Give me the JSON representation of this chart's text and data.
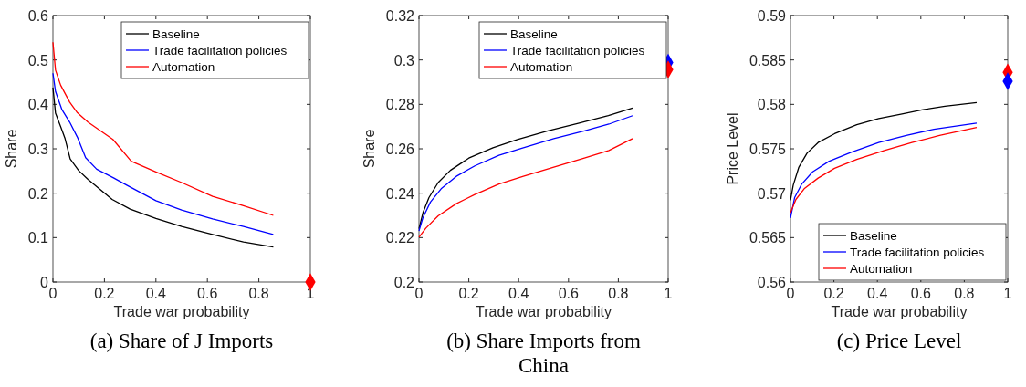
{
  "chart_data": [
    {
      "type": "line",
      "title": "(a) Share of J Imports",
      "xlabel": "Trade war probability",
      "ylabel": "Share",
      "xlim": [
        0,
        1
      ],
      "xticks": [
        0,
        0.2,
        0.4,
        0.6,
        0.8,
        1
      ],
      "ylim": [
        0,
        0.6
      ],
      "yticks": [
        0,
        0.1,
        0.2,
        0.3,
        0.4,
        0.5,
        0.6
      ],
      "legend": "top right",
      "series": [
        {
          "name": "Baseline",
          "color": "#000000",
          "x": [
            0,
            0.01,
            0.03,
            0.047,
            0.067,
            0.1,
            0.136,
            0.23,
            0.3,
            0.4,
            0.5,
            0.62,
            0.74,
            0.856
          ],
          "values": [
            0.438,
            0.38,
            0.35,
            0.323,
            0.277,
            0.251,
            0.231,
            0.186,
            0.164,
            0.143,
            0.125,
            0.107,
            0.09,
            0.079
          ]
        },
        {
          "name": "Trade facilitation policies",
          "color": "#0000ff",
          "x": [
            0,
            0.01,
            0.035,
            0.065,
            0.095,
            0.127,
            0.17,
            0.237,
            0.29,
            0.4,
            0.5,
            0.62,
            0.74,
            0.856
          ],
          "values": [
            0.47,
            0.429,
            0.388,
            0.36,
            0.326,
            0.28,
            0.254,
            0.234,
            0.217,
            0.183,
            0.162,
            0.142,
            0.125,
            0.107
          ]
        },
        {
          "name": "Automation",
          "color": "#ff0000",
          "x": [
            0,
            0.01,
            0.03,
            0.065,
            0.095,
            0.136,
            0.233,
            0.304,
            0.4,
            0.5,
            0.62,
            0.74,
            0.856
          ],
          "values": [
            0.54,
            0.477,
            0.443,
            0.405,
            0.381,
            0.36,
            0.321,
            0.272,
            0.248,
            0.224,
            0.193,
            0.172,
            0.15
          ]
        },
        {
          "type": "scatter",
          "marker": "diamond",
          "color": "#ff0000",
          "x": [
            1
          ],
          "values": [
            0
          ]
        }
      ]
    },
    {
      "type": "line",
      "title": "(b) Share Imports from China",
      "xlabel": "Trade war probability",
      "ylabel": "Share",
      "xlim": [
        0,
        1
      ],
      "xticks": [
        0,
        0.2,
        0.4,
        0.6,
        0.8,
        1
      ],
      "ylim": [
        0.2,
        0.32
      ],
      "yticks": [
        0.2,
        0.22,
        0.24,
        0.26,
        0.28,
        0.3,
        0.32
      ],
      "legend": "top right",
      "series": [
        {
          "name": "Baseline",
          "color": "#000000",
          "x": [
            0,
            0.016,
            0.04,
            0.077,
            0.126,
            0.2,
            0.297,
            0.395,
            0.517,
            0.639,
            0.76,
            0.857
          ],
          "values": [
            0.224,
            0.2312,
            0.238,
            0.2448,
            0.2503,
            0.2558,
            0.2605,
            0.2642,
            0.2681,
            0.2715,
            0.2749,
            0.2783
          ]
        },
        {
          "name": "Trade facilitation policies",
          "color": "#0000ff",
          "x": [
            0,
            0.016,
            0.046,
            0.089,
            0.15,
            0.224,
            0.321,
            0.419,
            0.541,
            0.664,
            0.762,
            0.857
          ],
          "values": [
            0.223,
            0.229,
            0.236,
            0.242,
            0.2476,
            0.2523,
            0.2571,
            0.2605,
            0.2646,
            0.2681,
            0.2711,
            0.2749
          ]
        },
        {
          "name": "Automation",
          "color": "#ff0000",
          "x": [
            0,
            0.028,
            0.077,
            0.15,
            0.224,
            0.321,
            0.419,
            0.541,
            0.664,
            0.762,
            0.857
          ],
          "values": [
            0.2202,
            0.2243,
            0.2298,
            0.2353,
            0.2394,
            0.2441,
            0.2476,
            0.2517,
            0.2558,
            0.2592,
            0.2646
          ]
        },
        {
          "type": "scatter",
          "marker": "diamond",
          "color": "#0000ff",
          "x": [
            1
          ],
          "values": [
            0.2988
          ]
        },
        {
          "type": "scatter",
          "marker": "diamond",
          "color": "#ff0000",
          "x": [
            1
          ],
          "values": [
            0.2957
          ]
        }
      ]
    },
    {
      "type": "line",
      "title": "(c) Price Level",
      "xlabel": "Trade war probability",
      "ylabel": "Price Level",
      "xlim": [
        0,
        1
      ],
      "xticks": [
        0,
        0.2,
        0.4,
        0.6,
        0.8,
        1
      ],
      "ylim": [
        0.56,
        0.59
      ],
      "yticks": [
        0.56,
        0.565,
        0.57,
        0.575,
        0.58,
        0.585,
        0.59
      ],
      "legend": "bottom right",
      "series": [
        {
          "name": "Baseline",
          "color": "#000000",
          "x": [
            0,
            0.0127,
            0.038,
            0.076,
            0.127,
            0.203,
            0.305,
            0.406,
            0.508,
            0.61,
            0.711,
            0.857
          ],
          "values": [
            0.5692,
            0.5709,
            0.5729,
            0.5745,
            0.5757,
            0.5767,
            0.5777,
            0.5784,
            0.5789,
            0.5794,
            0.5798,
            0.5802
          ]
        },
        {
          "name": "Trade facilitation policies",
          "color": "#0000ff",
          "x": [
            0,
            0.019,
            0.051,
            0.102,
            0.178,
            0.279,
            0.406,
            0.533,
            0.66,
            0.857
          ],
          "values": [
            0.5672,
            0.5695,
            0.571,
            0.5724,
            0.5736,
            0.5746,
            0.5757,
            0.5765,
            0.5772,
            0.5779
          ]
        },
        {
          "name": "Automation",
          "color": "#ff0000",
          "x": [
            0,
            0.025,
            0.063,
            0.127,
            0.203,
            0.305,
            0.432,
            0.559,
            0.686,
            0.857
          ],
          "values": [
            0.5678,
            0.5693,
            0.5705,
            0.5717,
            0.5728,
            0.5738,
            0.5748,
            0.5757,
            0.5765,
            0.5774
          ]
        },
        {
          "type": "scatter",
          "marker": "diamond",
          "color": "#ff0000",
          "x": [
            1
          ],
          "values": [
            0.5836
          ]
        },
        {
          "type": "scatter",
          "marker": "diamond",
          "color": "#0000ff",
          "x": [
            1
          ],
          "values": [
            0.5826
          ]
        }
      ]
    }
  ]
}
